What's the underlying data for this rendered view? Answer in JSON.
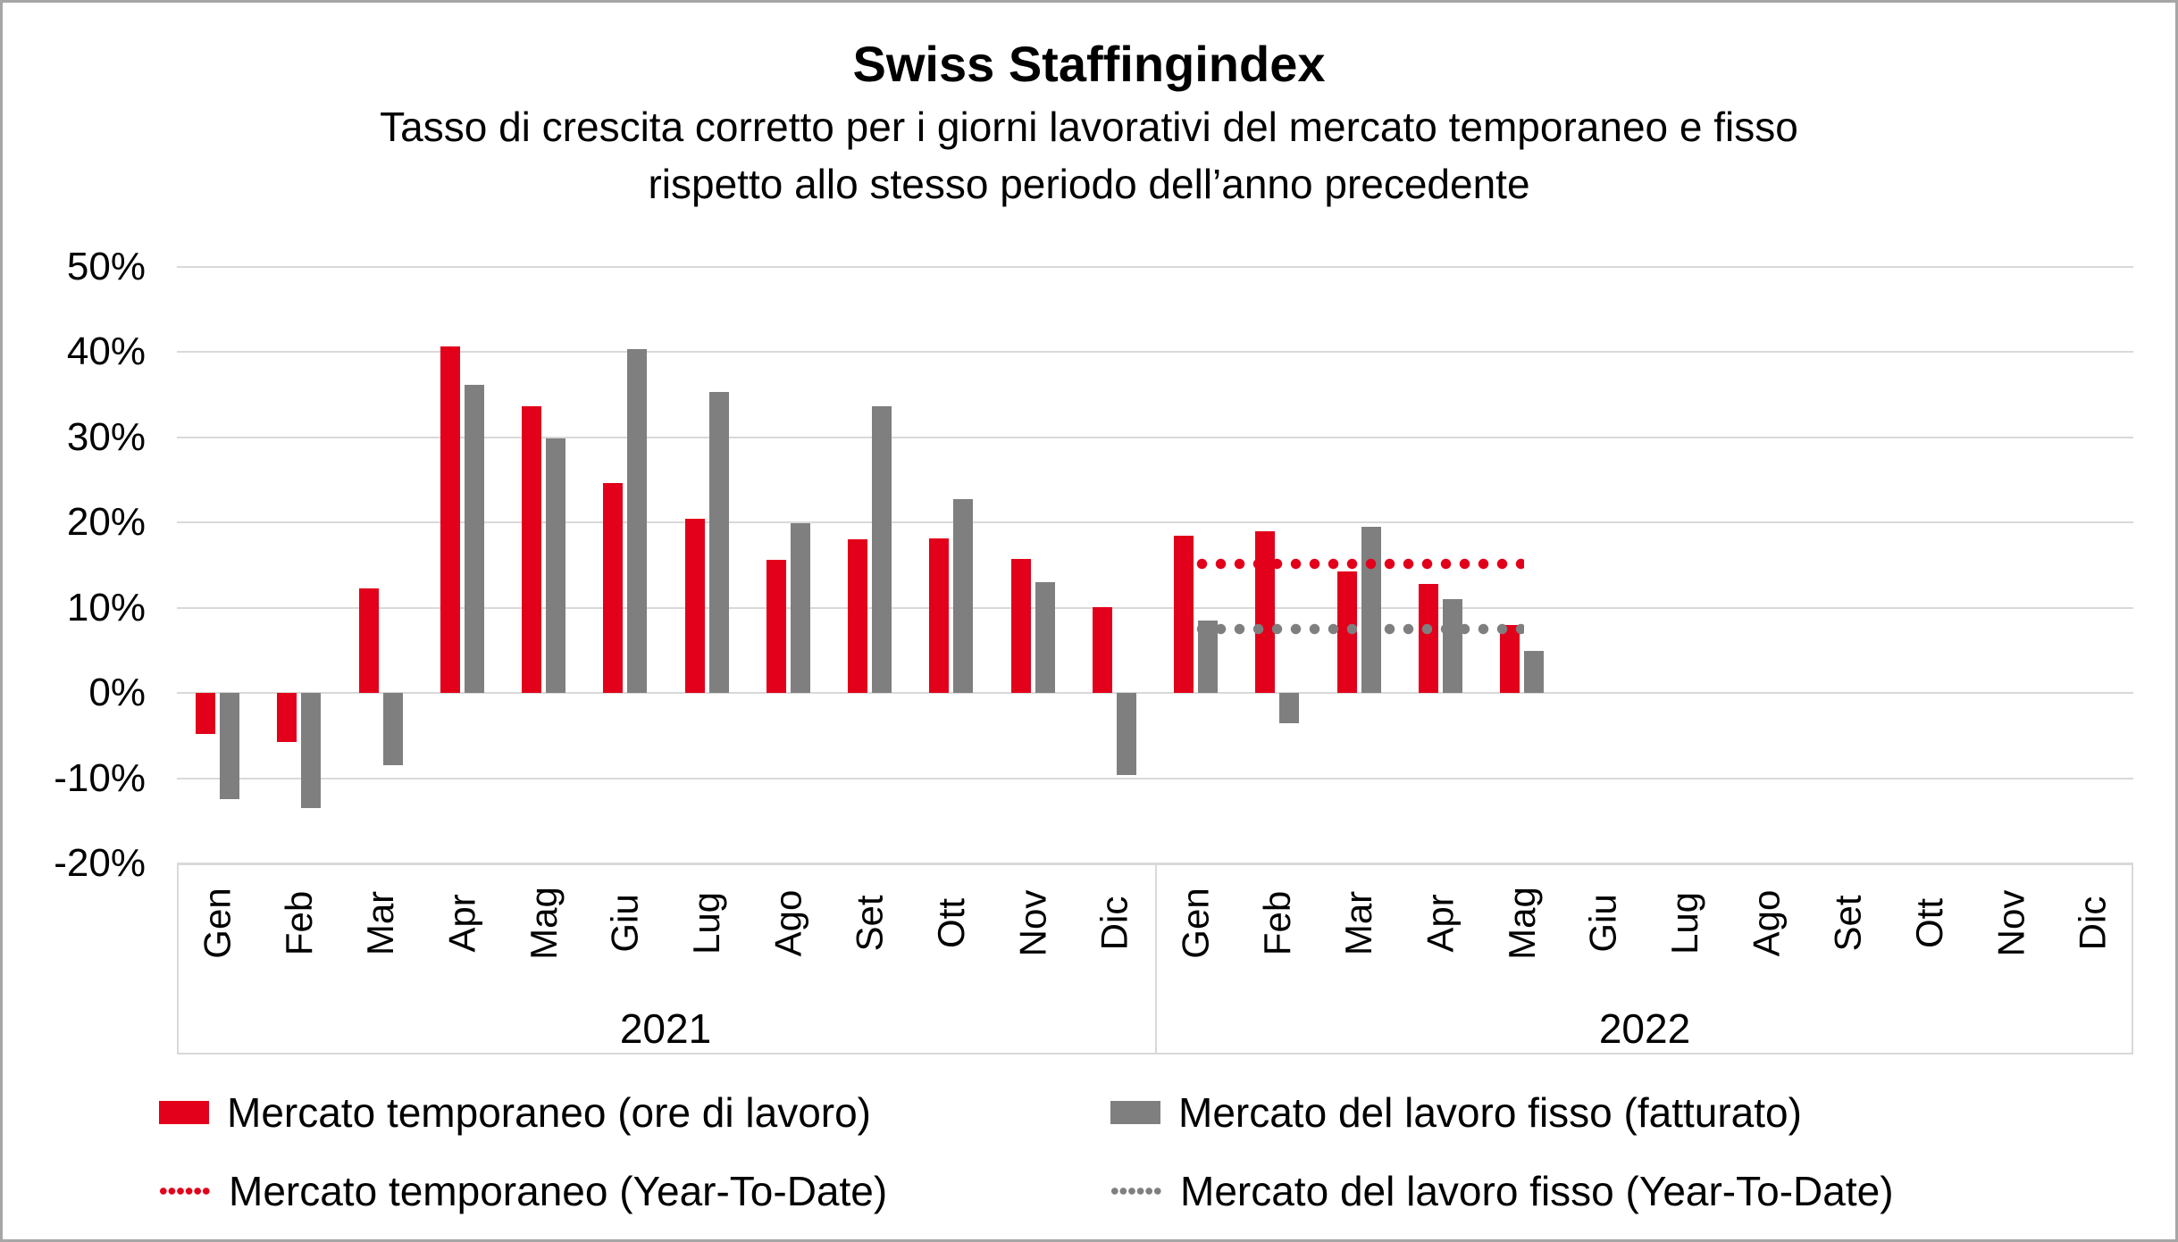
{
  "title": "Swiss Staffingindex",
  "subtitle_line1": "Tasso di crescita corretto per i giorni lavorativi del mercato temporaneo e fisso",
  "subtitle_line2": "rispetto allo stesso periodo dell’anno precedente",
  "colors": {
    "temporaneo_red": "#e2001a",
    "fisso_gray": "#7f7f7f",
    "gridline_gray": "#d9d9d9",
    "frame_border_gray": "#a6a6a6"
  },
  "chart_data": {
    "type": "bar",
    "title": "Swiss Staffingindex",
    "subtitle": "Tasso di crescita corretto per i giorni lavorativi del mercato temporaneo e fisso rispetto allo stesso periodo dell’anno precedente",
    "ylim": [
      -20,
      50
    ],
    "ytick_step": 10,
    "ytick_labels": [
      "50%",
      "40%",
      "30%",
      "20%",
      "10%",
      "0%",
      "-10%",
      "-20%"
    ],
    "grid": true,
    "legend_position": "bottom",
    "year_groups": [
      {
        "year": "2021",
        "months": [
          "Gen",
          "Feb",
          "Mar",
          "Apr",
          "Mag",
          "Giu",
          "Lug",
          "Ago",
          "Set",
          "Ott",
          "Nov",
          "Dic"
        ]
      },
      {
        "year": "2022",
        "months": [
          "Gen",
          "Feb",
          "Mar",
          "Apr",
          "Mag",
          "Giu",
          "Lug",
          "Ago",
          "Set",
          "Ott",
          "Nov",
          "Dic"
        ]
      }
    ],
    "series": [
      {
        "name": "Mercato temporaneo (ore di lavoro)",
        "color": "#e2001a",
        "values": [
          -4.8,
          -5.8,
          12.3,
          40.7,
          33.7,
          24.6,
          20.4,
          15.6,
          18.0,
          18.1,
          15.7,
          10.1,
          18.5,
          19.0,
          14.3,
          12.8,
          8.0,
          null,
          null,
          null,
          null,
          null,
          null,
          null
        ]
      },
      {
        "name": "Mercato del lavoro fisso (fatturato)",
        "color": "#7f7f7f",
        "values": [
          -12.5,
          -13.5,
          -8.5,
          36.2,
          29.9,
          40.4,
          35.3,
          19.9,
          33.7,
          22.8,
          13.0,
          -9.6,
          8.5,
          -3.5,
          19.5,
          11.0,
          4.9,
          null,
          null,
          null,
          null,
          null,
          null,
          null
        ]
      }
    ],
    "ytd_lines": [
      {
        "name": "Mercato temporaneo (Year-To-Date)",
        "color": "#e2001a",
        "value": 15.2,
        "start_month_index": 12,
        "end_month_index": 16
      },
      {
        "name": "Mercato del lavoro fisso (Year-To-Date)",
        "color": "#7f7f7f",
        "value": 7.5,
        "start_month_index": 12,
        "end_month_index": 16
      }
    ]
  },
  "legend": {
    "items": [
      {
        "label": "Mercato temporaneo (ore di lavoro)",
        "style": "solid",
        "color": "#e2001a"
      },
      {
        "label": "Mercato del lavoro fisso (fatturato)",
        "style": "solid",
        "color": "#7f7f7f"
      },
      {
        "label": "Mercato temporaneo (Year-To-Date)",
        "style": "dotted",
        "color": "#e2001a"
      },
      {
        "label": "Mercato del lavoro fisso (Year-To-Date)",
        "style": "dotted",
        "color": "#7f7f7f"
      }
    ]
  }
}
